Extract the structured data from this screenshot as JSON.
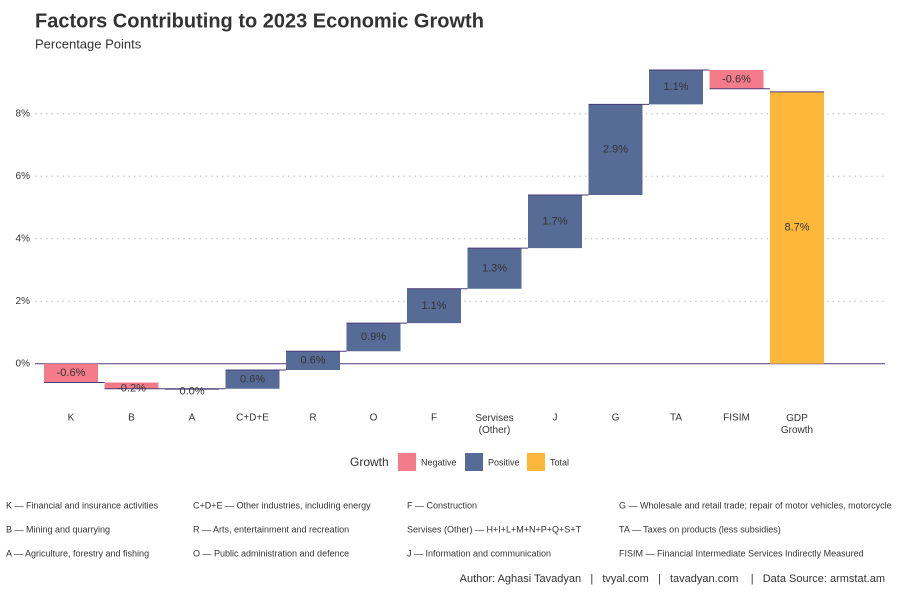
{
  "chart_data": {
    "type": "waterfall",
    "title": "Factors Contributing to 2023 Economic Growth",
    "subtitle": "Percentage Points",
    "categories": [
      "K",
      "B",
      "A",
      "C+D+E",
      "R",
      "O",
      "F",
      "Servises (Other)",
      "J",
      "G",
      "TA",
      "FISIM",
      "GDP Growth"
    ],
    "values": [
      -0.6,
      -0.2,
      0.0,
      0.6,
      0.6,
      0.9,
      1.1,
      1.3,
      1.7,
      2.9,
      1.1,
      -0.6,
      8.7
    ],
    "value_labels": [
      "-0.6%",
      "-0.2%",
      "0.0%",
      "0.6%",
      "0.6%",
      "0.9%",
      "1.1%",
      "1.3%",
      "1.7%",
      "2.9%",
      "1.1%",
      "-0.6%",
      "8.7%"
    ],
    "measure": [
      "relative",
      "relative",
      "relative",
      "relative",
      "relative",
      "relative",
      "relative",
      "relative",
      "relative",
      "relative",
      "relative",
      "relative",
      "total"
    ],
    "ylim": [
      -1.0,
      9.4
    ],
    "yticks": [
      {
        "value": 0,
        "label": "0%"
      },
      {
        "value": 2,
        "label": "2%"
      },
      {
        "value": 4,
        "label": "4%"
      },
      {
        "value": 6,
        "label": "6%"
      },
      {
        "value": 8,
        "label": "8%"
      }
    ],
    "grid": true,
    "legend": {
      "title": "Growth",
      "position": "bottom",
      "items": [
        {
          "name": "Negative",
          "color": "#f47c8a"
        },
        {
          "name": "Positive",
          "color": "#566b96"
        },
        {
          "name": "Total",
          "color": "#fdb73a"
        }
      ]
    },
    "footnotes": [
      [
        "K — Financial and insurance activities",
        "B — Mining and quarrying",
        "A — Agriculture, forestry and fishing"
      ],
      [
        "C+D+E — Other industries, including energy",
        "R — Arts, entertainment and recreation",
        "O — Public administration and defence"
      ],
      [
        "F — Construction",
        "Servises (Other) — H+I+L+M+N+P+Q+S+T",
        "J — Information and communication"
      ],
      [
        "G — Wholesale and retail trade; repair of motor vehicles, motorcycle",
        "TA — Taxes on products (less subsidies)",
        "FISIM — Financial Intermediate Services Indirectly Measured"
      ]
    ],
    "caption": "Author: Aghasi Tavadyan   |   tvyal.com   |   tavadyan.com    |   Data Source: armstat.am"
  }
}
